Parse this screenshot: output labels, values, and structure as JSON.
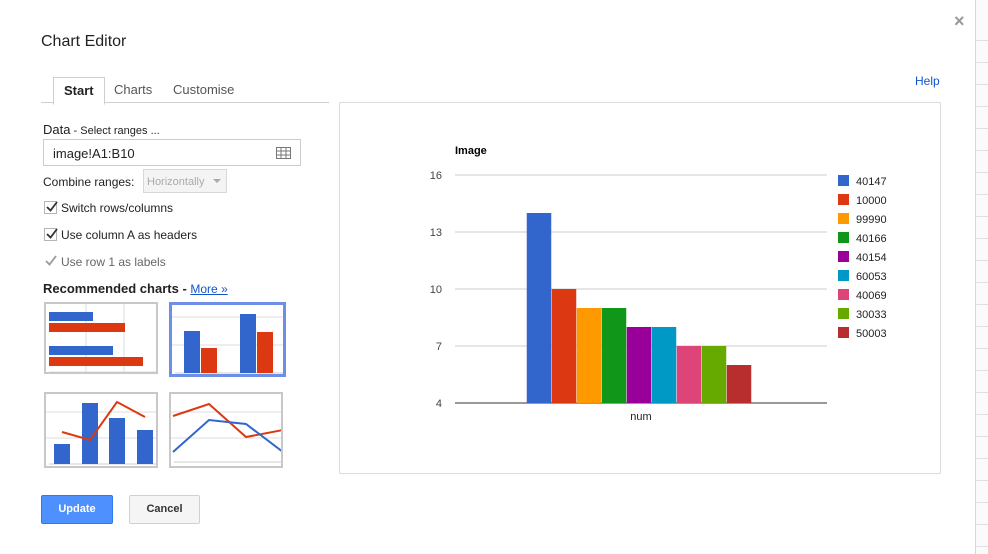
{
  "dialog": {
    "title": "Chart Editor",
    "help": "Help",
    "close": "×"
  },
  "tabs": [
    {
      "label": "Start",
      "active": true
    },
    {
      "label": "Charts",
      "active": false
    },
    {
      "label": "Customise",
      "active": false
    }
  ],
  "data_section": {
    "label": "Data",
    "sub": " - Select ranges ...",
    "range_value": "image!A1:B10",
    "range_icon": "grid-icon"
  },
  "combine": {
    "label": "Combine ranges:",
    "selected": "Horizontally",
    "disabled": true
  },
  "options": [
    {
      "label": "Switch rows/columns",
      "checked": true,
      "disabled": false
    },
    {
      "label": "Use column A as headers",
      "checked": true,
      "disabled": false
    },
    {
      "label": "Use row 1 as labels",
      "checked": true,
      "disabled": true
    }
  ],
  "recommended": {
    "label": "Recommended charts",
    "separator": " - ",
    "more": "More »",
    "thumbs": [
      {
        "kind": "horizontal-bar",
        "selected": false
      },
      {
        "kind": "column",
        "selected": true
      },
      {
        "kind": "combo",
        "selected": false
      },
      {
        "kind": "line",
        "selected": false
      }
    ]
  },
  "buttons": {
    "update": "Update",
    "cancel": "Cancel"
  },
  "colors": {
    "blue": "#3366cc",
    "red": "#dc3912",
    "accent_button": "#4d90fe",
    "link": "#1155cc"
  },
  "chart_data": {
    "type": "bar",
    "title": "Image",
    "categories": [
      "num"
    ],
    "xlabel": "",
    "ylabel": "",
    "ylim": [
      4,
      16
    ],
    "yticks": [
      4,
      7,
      10,
      13,
      16
    ],
    "grid": true,
    "legend": "right",
    "series": [
      {
        "name": "40147",
        "values": [
          14
        ],
        "color": "#3366cc"
      },
      {
        "name": "10000",
        "values": [
          10
        ],
        "color": "#dc3912"
      },
      {
        "name": "99990",
        "values": [
          9
        ],
        "color": "#ff9900"
      },
      {
        "name": "40166",
        "values": [
          9
        ],
        "color": "#109618"
      },
      {
        "name": "40154",
        "values": [
          8
        ],
        "color": "#990099"
      },
      {
        "name": "60053",
        "values": [
          8
        ],
        "color": "#0099c6"
      },
      {
        "name": "40069",
        "values": [
          7
        ],
        "color": "#dd4477"
      },
      {
        "name": "30033",
        "values": [
          7
        ],
        "color": "#66aa00"
      },
      {
        "name": "50003",
        "values": [
          6
        ],
        "color": "#b82e2e"
      }
    ]
  }
}
